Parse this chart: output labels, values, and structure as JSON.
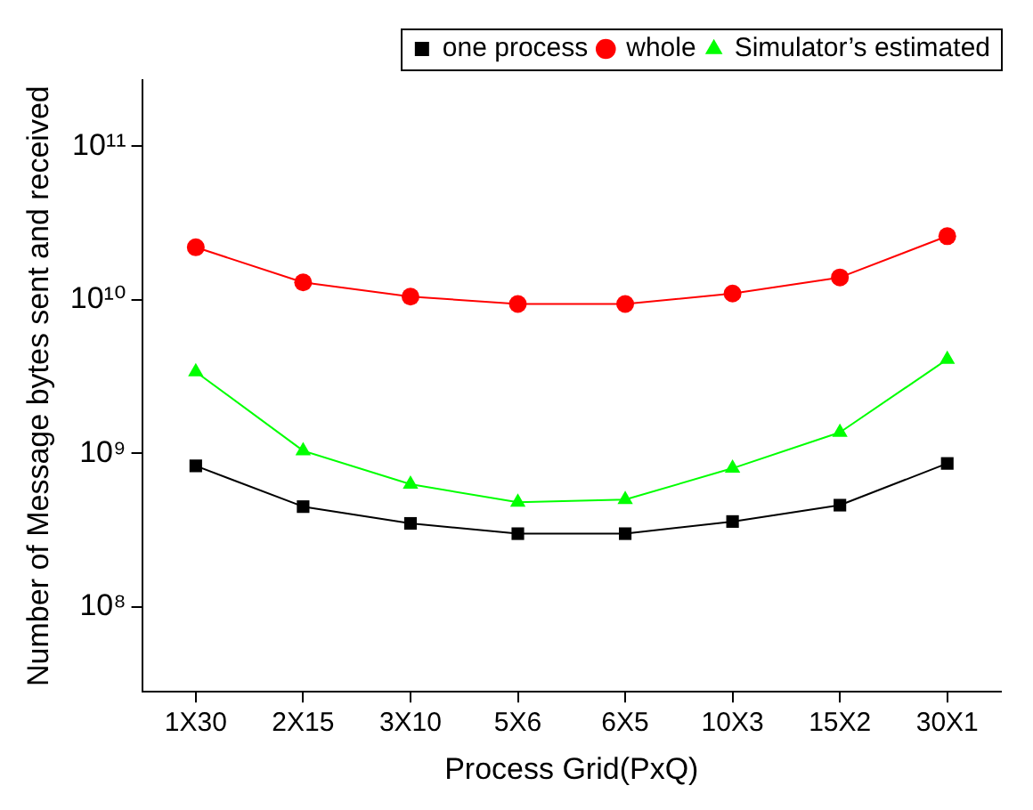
{
  "chart_data": {
    "type": "line",
    "xlabel": "Process Grid(PxQ)",
    "ylabel": "Number of Message bytes sent and received",
    "categories": [
      "1X30",
      "2X15",
      "3X10",
      "5X6",
      "6X5",
      "10X3",
      "15X2",
      "30X1"
    ],
    "series": [
      {
        "name": "one process",
        "color": "#000000",
        "marker": "square",
        "values": [
          830000000.0,
          450000000.0,
          350000000.0,
          300000000.0,
          300000000.0,
          360000000.0,
          460000000.0,
          860000000.0
        ]
      },
      {
        "name": "whole",
        "color": "#ff0000",
        "marker": "circle",
        "values": [
          22000000000.0,
          13000000000.0,
          10500000000.0,
          9400000000.0,
          9400000000.0,
          11000000000.0,
          14000000000.0,
          26000000000.0
        ]
      },
      {
        "name": "Simulator’s estimated",
        "color": "#00ff00",
        "marker": "triangle",
        "values": [
          3400000000.0,
          1040000000.0,
          630000000.0,
          480000000.0,
          500000000.0,
          800000000.0,
          1370000000.0,
          4100000000.0
        ]
      }
    ],
    "log": "y",
    "ylim": [
      28000000.0,
      270000000000.0
    ],
    "yticks": [
      {
        "value": 100000000.0,
        "label": "10⁸"
      },
      {
        "value": 1000000000.0,
        "label": "10⁹"
      },
      {
        "value": 10000000000.0,
        "label": "10¹⁰"
      },
      {
        "value": 100000000000.0,
        "label": "10¹¹"
      }
    ],
    "grid": false,
    "legend": "top right",
    "line_style": "solid"
  }
}
